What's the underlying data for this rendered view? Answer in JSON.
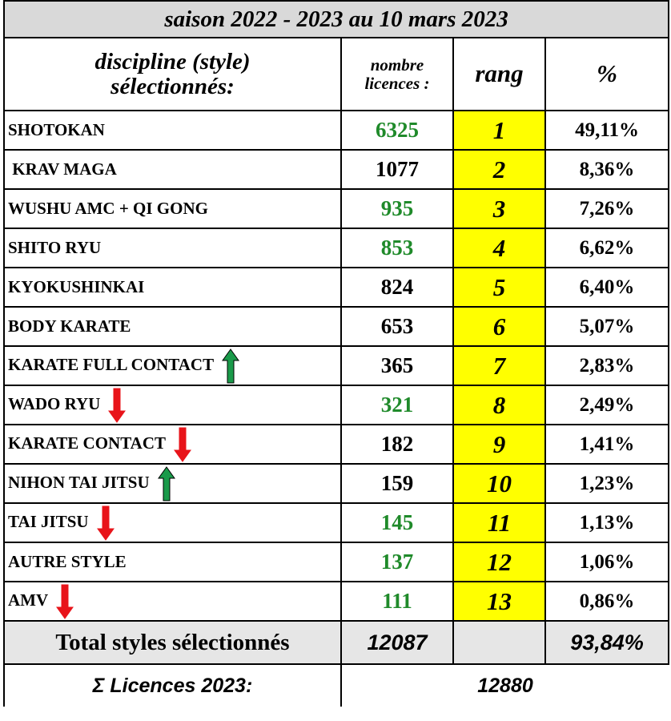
{
  "title": "saison  2022 - 2023 au 10 mars 2023",
  "header": {
    "discipline": "discipline (style) sélectionnés:",
    "licences": "nombre licences :",
    "rang": "rang",
    "percent": "%"
  },
  "colors": {
    "green": "#1f8a2a",
    "black": "#000000",
    "rank_fill": "#ffff00",
    "up": "#1a9a4a",
    "down": "#e8141a"
  },
  "rows": [
    {
      "name": "SHOTOKAN",
      "licences": "6325",
      "rang": "1",
      "percent": "49,11%",
      "licence_color": "green"
    },
    {
      "name": " KRAV MAGA",
      "licences": "1077",
      "rang": "2",
      "percent": "8,36%",
      "licence_color": "black"
    },
    {
      "name": "WUSHU AMC + QI GONG",
      "licences": "935",
      "rang": "3",
      "percent": "7,26%",
      "licence_color": "green"
    },
    {
      "name": "SHITO RYU",
      "licences": "853",
      "rang": "4",
      "percent": "6,62%",
      "licence_color": "green"
    },
    {
      "name": "KYOKUSHINKAI",
      "licences": "824",
      "rang": "5",
      "percent": "6,40%",
      "licence_color": "black"
    },
    {
      "name": "BODY KARATE",
      "licences": "653",
      "rang": "6",
      "percent": "5,07%",
      "licence_color": "black"
    },
    {
      "name": "KARATE FULL CONTACT",
      "licences": "365",
      "rang": "7",
      "percent": "2,83%",
      "licence_color": "black",
      "arrow": "up"
    },
    {
      "name": "WADO RYU",
      "licences": "321",
      "rang": "8",
      "percent": "2,49%",
      "licence_color": "green",
      "arrow": "down"
    },
    {
      "name": "KARATE CONTACT",
      "licences": "182",
      "rang": "9",
      "percent": "1,41%",
      "licence_color": "black",
      "arrow": "down"
    },
    {
      "name": "NIHON TAI JITSU",
      "licences": "159",
      "rang": "10",
      "percent": "1,23%",
      "licence_color": "black",
      "arrow": "up"
    },
    {
      "name": "TAI JITSU",
      "licences": "145",
      "rang": "11",
      "percent": "1,13%",
      "licence_color": "green",
      "arrow": "down"
    },
    {
      "name": "AUTRE STYLE",
      "licences": "137",
      "rang": "12",
      "percent": "1,06%",
      "licence_color": "green"
    },
    {
      "name": "AMV",
      "licences": "111",
      "rang": "13",
      "percent": "0,86%",
      "licence_color": "green",
      "arrow": "down"
    }
  ],
  "total": {
    "label": "Total styles sélectionnés",
    "licences": "12087",
    "percent": "93,84%"
  },
  "sum": {
    "label": "Σ Licences 2023:",
    "value": "12880"
  }
}
